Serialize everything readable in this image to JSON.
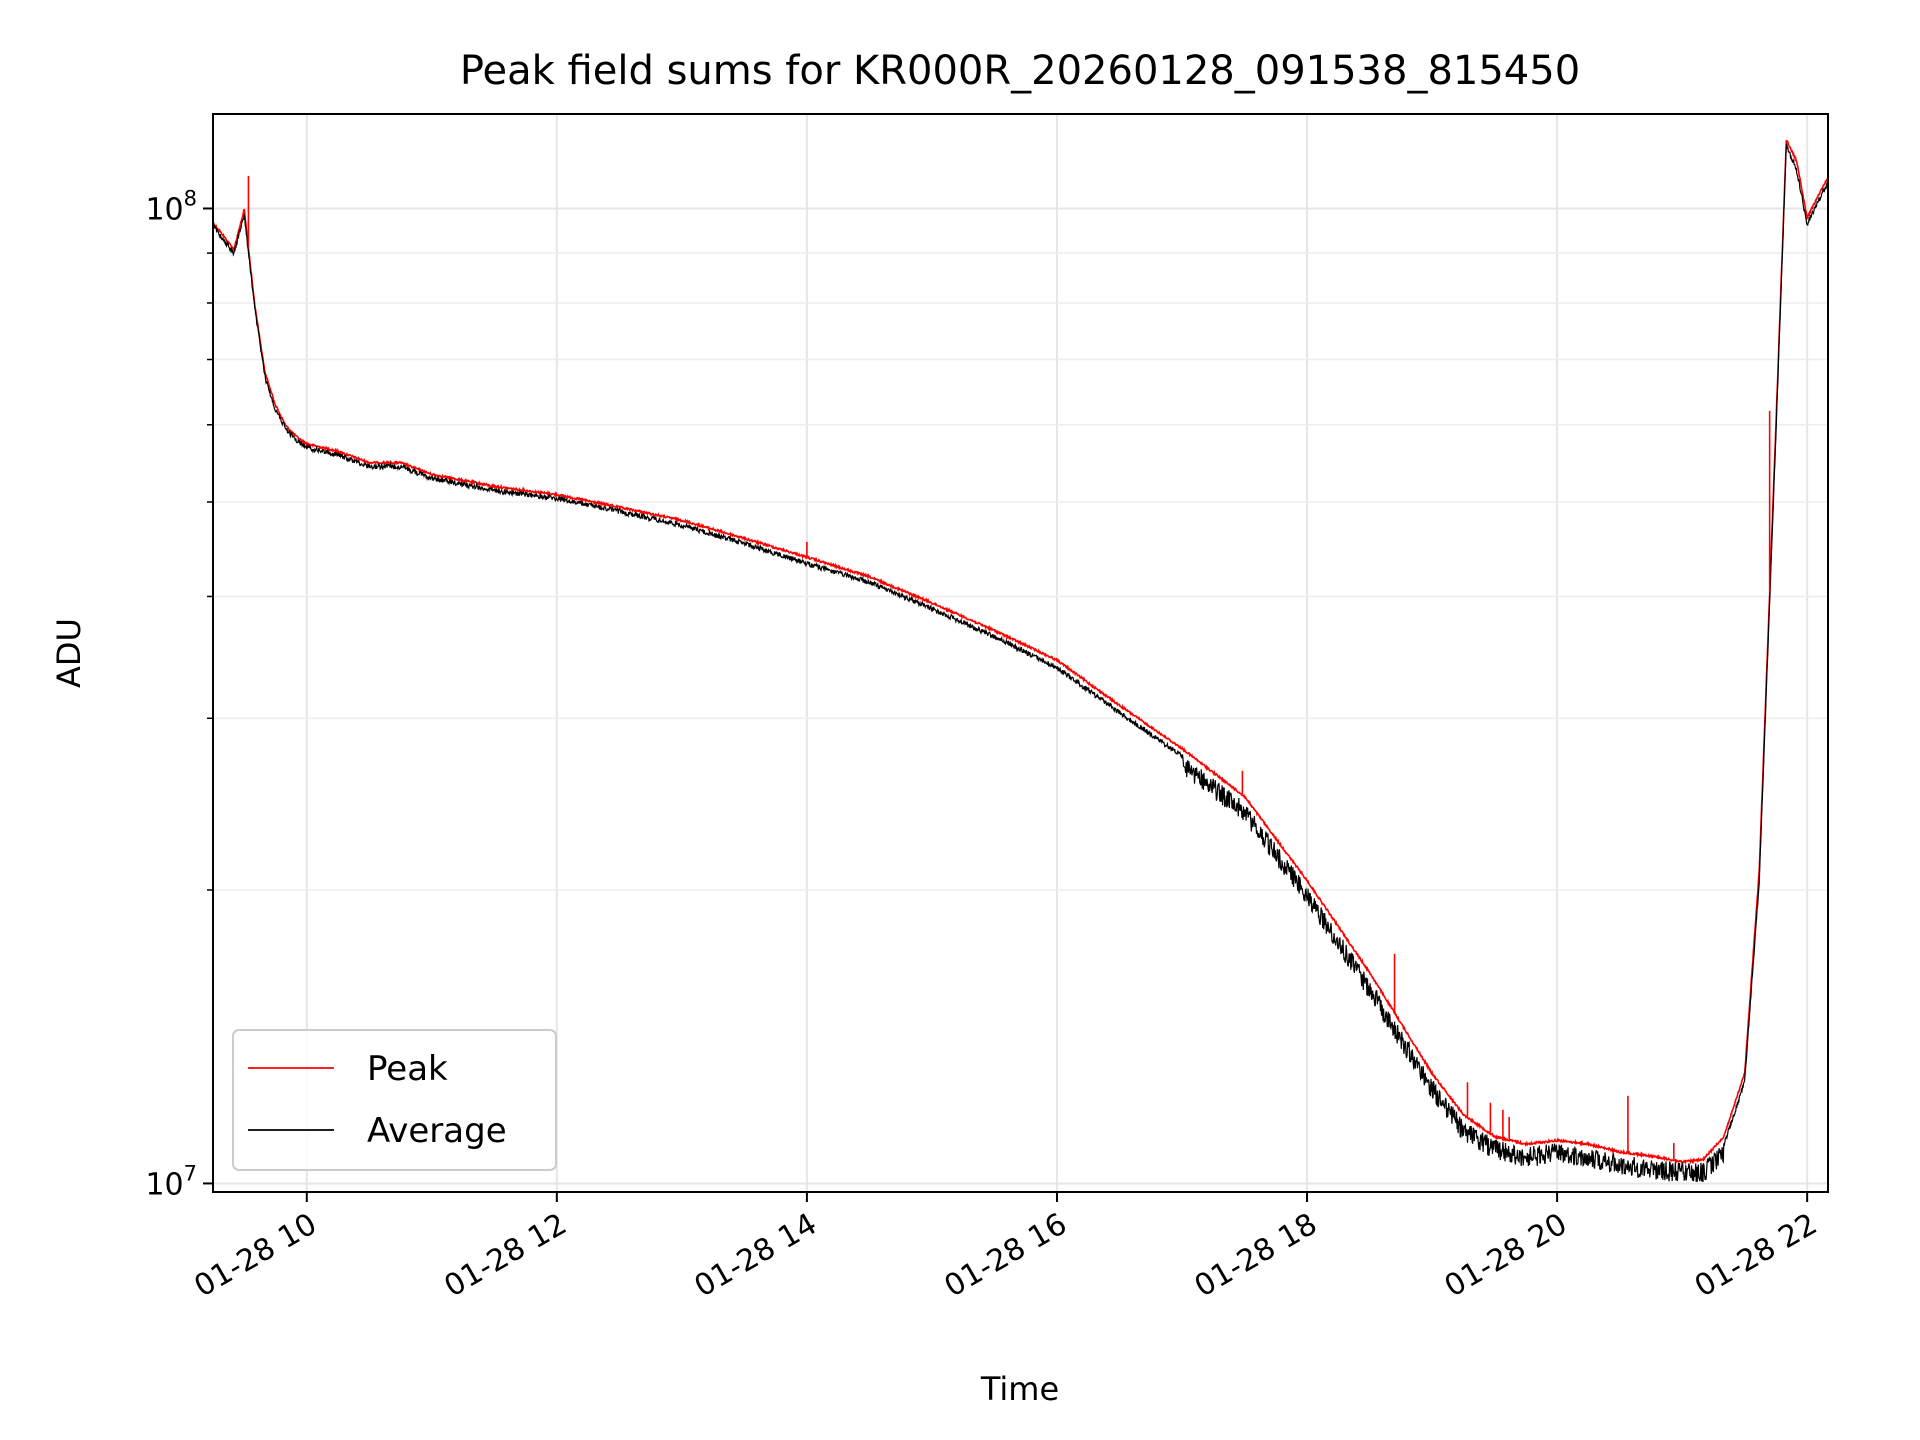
{
  "chart_data": {
    "type": "line",
    "title": "Peak field sums for KR000R_20260128_091538_815450",
    "xlabel": "Time",
    "ylabel": "ADU",
    "yscale": "log",
    "ylim": [
      9800000,
      125000000
    ],
    "xlim": [
      "01-28 09:15",
      "01-28 22:10"
    ],
    "x_ticks": [
      "01-28 10",
      "01-28 12",
      "01-28 14",
      "01-28 16",
      "01-28 18",
      "01-28 20",
      "01-28 22"
    ],
    "y_ticks": [
      {
        "value": 10000000,
        "base": "10",
        "exp": "7"
      },
      {
        "value": 100000000,
        "base": "10",
        "exp": "8"
      }
    ],
    "grid": "on (major and minor)",
    "legend_position": "lower-left",
    "x": [
      "01-28 09:15",
      "01-28 09:20",
      "01-28 09:25",
      "01-28 09:30",
      "01-28 09:35",
      "01-28 09:40",
      "01-28 09:45",
      "01-28 09:50",
      "01-28 09:55",
      "01-28 10:00",
      "01-28 10:15",
      "01-28 10:30",
      "01-28 10:45",
      "01-28 11:00",
      "01-28 11:30",
      "01-28 12:00",
      "01-28 12:30",
      "01-28 13:00",
      "01-28 13:30",
      "01-28 14:00",
      "01-28 14:30",
      "01-28 15:00",
      "01-28 15:30",
      "01-28 16:00",
      "01-28 16:30",
      "01-28 17:00",
      "01-28 17:30",
      "01-28 18:00",
      "01-28 18:30",
      "01-28 19:00",
      "01-28 19:15",
      "01-28 19:30",
      "01-28 19:45",
      "01-28 20:00",
      "01-28 20:15",
      "01-28 20:30",
      "01-28 20:45",
      "01-28 21:00",
      "01-28 21:10",
      "01-28 21:20",
      "01-28 21:30",
      "01-28 21:37",
      "01-28 21:45",
      "01-28 21:50",
      "01-28 21:55",
      "01-28 22:00",
      "01-28 22:05",
      "01-28 22:10"
    ],
    "series": [
      {
        "name": "Peak",
        "color": "#ff0000",
        "values": [
          97000000,
          94000000,
          91000000,
          100000000,
          80000000,
          68000000,
          63000000,
          60000000,
          58500000,
          57500000,
          56500000,
          55000000,
          55000000,
          53500000,
          52000000,
          51000000,
          49500000,
          48000000,
          46000000,
          44000000,
          42000000,
          39500000,
          37000000,
          34500000,
          31000000,
          28000000,
          25000000,
          20500000,
          16500000,
          13000000,
          11800000,
          11200000,
          11000000,
          11100000,
          11000000,
          10800000,
          10700000,
          10550000,
          10600000,
          11200000,
          13000000,
          21000000,
          60000000,
          118000000,
          112000000,
          98000000,
          103000000,
          108000000
        ]
      },
      {
        "name": "Average",
        "color": "#000000",
        "values": [
          96500000,
          93500000,
          90500000,
          99000000,
          79500000,
          67500000,
          62500000,
          59800000,
          58200000,
          57200000,
          56200000,
          54700000,
          54700000,
          53200000,
          51700000,
          50700000,
          49200000,
          47600000,
          45600000,
          43500000,
          41600000,
          39100000,
          36600000,
          34000000,
          30600000,
          27600000,
          24600000,
          20200000,
          16200000,
          12800000,
          11600000,
          11100000,
          10900000,
          11000000,
          10900000,
          10700000,
          10600000,
          10500000,
          10500000,
          11000000,
          12800000,
          20500000,
          59000000,
          117000000,
          110000000,
          97000000,
          102000000,
          107000000
        ]
      }
    ]
  }
}
